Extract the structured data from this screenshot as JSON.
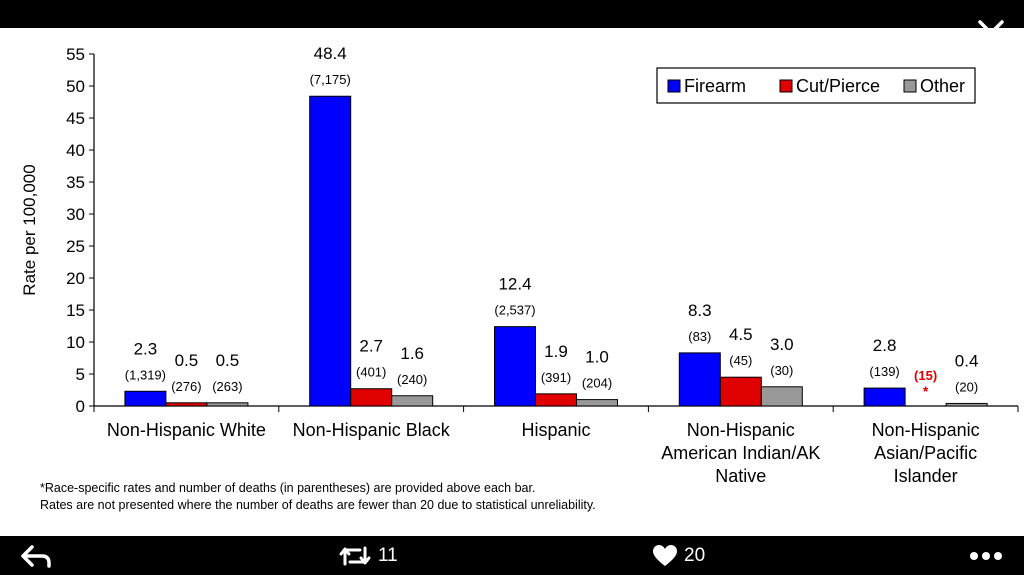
{
  "viewer": {
    "close_icon": "close-icon",
    "reply_icon": "reply-icon",
    "retweet_icon": "retweet-icon",
    "retweet_count": "11",
    "like_icon": "heart-icon",
    "like_count": "20",
    "more_icon": "more-icon"
  },
  "chart_data": {
    "type": "bar",
    "title": "",
    "xlabel": "",
    "ylabel": "Rate per 100,000",
    "ylim": [
      0,
      55
    ],
    "yticks": [
      "0",
      "5",
      "10",
      "15",
      "20",
      "25",
      "30",
      "35",
      "40",
      "45",
      "50",
      "55"
    ],
    "legend_position": "top-right",
    "categories": [
      [
        "Non-Hispanic White"
      ],
      [
        "Non-Hispanic Black"
      ],
      [
        "Hispanic"
      ],
      [
        "Non-Hispanic",
        "American Indian/AK",
        "Native"
      ],
      [
        "Non-Hispanic",
        "Asian/Pacific",
        "Islander"
      ]
    ],
    "series": [
      {
        "name": "Firearm",
        "color": "#0000ff",
        "values": [
          2.3,
          48.4,
          12.4,
          8.3,
          2.8
        ],
        "rate_labels": [
          "2.3",
          "48.4",
          "12.4",
          "8.3",
          "2.8"
        ],
        "death_labels": [
          "(1,319)",
          "(7,175)",
          "(2,537)",
          "(83)",
          "(139)"
        ]
      },
      {
        "name": "Cut/Pierce",
        "color": "#e00000",
        "values": [
          0.5,
          2.7,
          1.9,
          4.5,
          null
        ],
        "rate_labels": [
          "0.5",
          "2.7",
          "1.9",
          "4.5",
          "*"
        ],
        "death_labels": [
          "(276)",
          "(401)",
          "(391)",
          "(45)",
          "(15)"
        ]
      },
      {
        "name": "Other",
        "color": "#999999",
        "values": [
          0.5,
          1.6,
          1.0,
          3.0,
          0.4
        ],
        "rate_labels": [
          "0.5",
          "1.6",
          "1.0",
          "3.0",
          "0.4"
        ],
        "death_labels": [
          "(263)",
          "(240)",
          "(204)",
          "(30)",
          "(20)"
        ]
      }
    ],
    "footnotes": [
      "*Race-specific rates and number of deaths (in parentheses)  are provided above each bar.",
      "Rates are not presented where  the number of deaths are fewer than 20 due to statistical unreliability."
    ],
    "suppressed_color": "#e00000"
  }
}
